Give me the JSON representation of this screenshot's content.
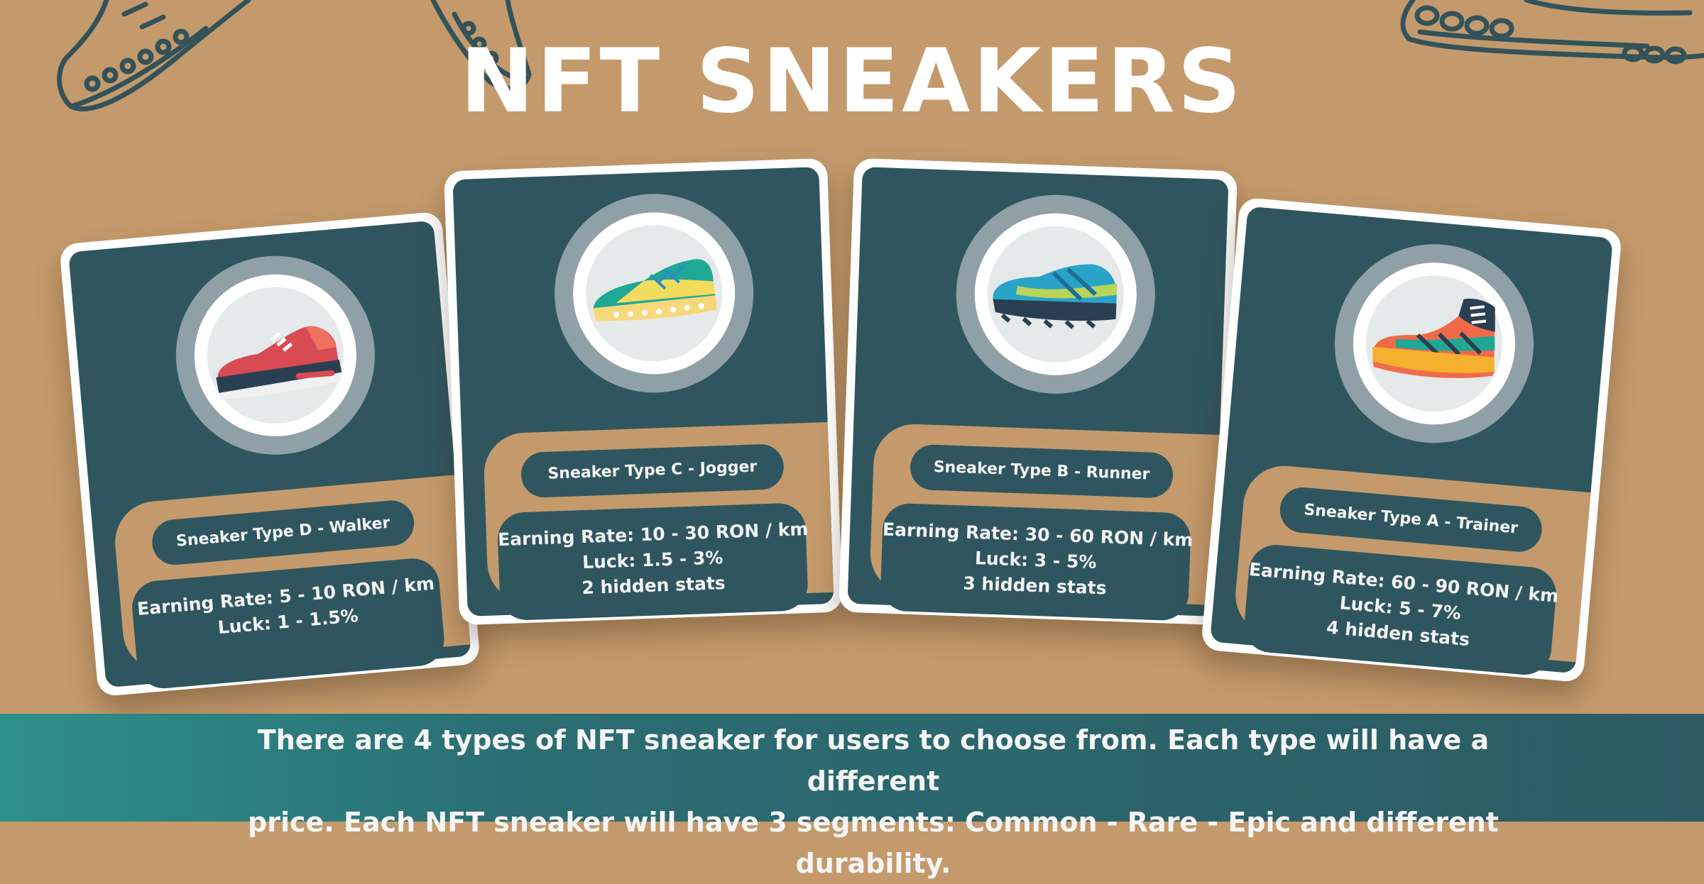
{
  "title": "NFT SNEAKERS",
  "cards": [
    {
      "name": "Sneaker Type D - Walker",
      "earning": "Earning Rate: 5 - 10 RON / km",
      "luck": "Luck: 1 - 1.5%",
      "hidden": "",
      "icon": "red-sneaker-icon"
    },
    {
      "name": "Sneaker Type C - Jogger",
      "earning": "Earning Rate: 10 - 30 RON / km",
      "luck": "Luck: 1.5 - 3%",
      "hidden": "2 hidden stats",
      "icon": "teal-sneaker-icon"
    },
    {
      "name": "Sneaker Type B - Runner",
      "earning": "Earning Rate: 30 - 60 RON / km",
      "luck": "Luck: 3 - 5%",
      "hidden": "3 hidden stats",
      "icon": "blue-sneaker-icon"
    },
    {
      "name": "Sneaker Type A - Trainer",
      "earning": "Earning Rate: 60 - 90 RON / km",
      "luck": "Luck: 5 - 7%",
      "hidden": "4 hidden stats",
      "icon": "hightop-sneaker-icon"
    }
  ],
  "footer": {
    "line1": "There are 4 types of NFT sneaker for users to choose from. Each type will have a different",
    "line2": "price. Each NFT sneaker will have 3 segments: Common - Rare - Epic and different durability."
  },
  "colors": {
    "background": "#c49a6c",
    "card_panel": "#2f565f",
    "banner_start": "#2e8f8c",
    "banner_end": "#2d5a63",
    "title": "#ffffff"
  }
}
